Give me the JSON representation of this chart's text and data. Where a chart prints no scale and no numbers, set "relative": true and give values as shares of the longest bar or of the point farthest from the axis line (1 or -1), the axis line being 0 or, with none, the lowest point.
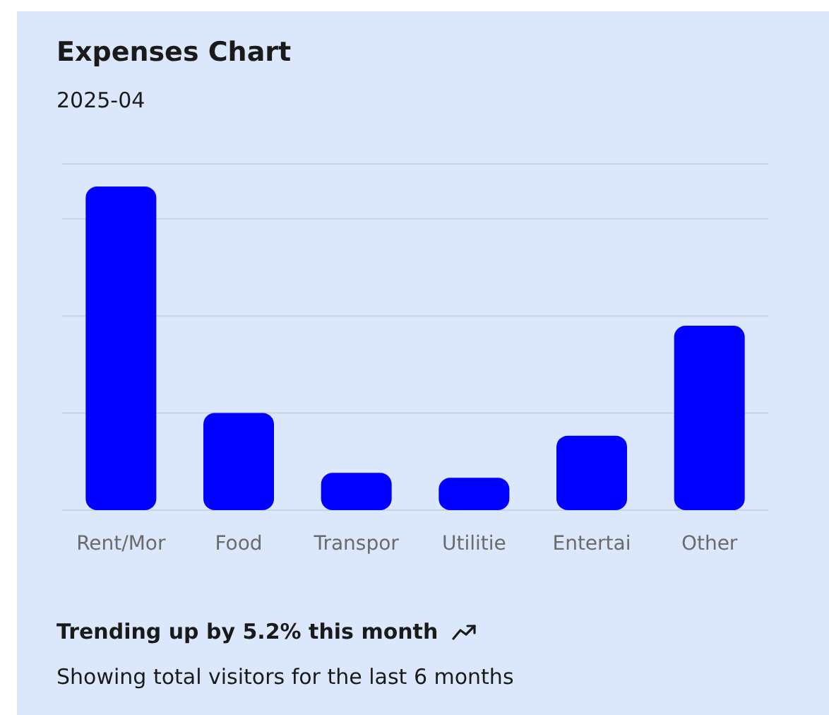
{
  "chart_data": {
    "type": "bar",
    "title": "Expenses Chart",
    "subtitle": "2025-04",
    "categories": [
      "Rent/Mor",
      "Food",
      "Transpor",
      "Utilitie",
      "Entertai",
      "Other"
    ],
    "values": [
      1,
      0.3,
      0.115,
      0.1,
      0.23,
      0.57
    ],
    "color": "#0000ff",
    "relative": true,
    "grid": "y",
    "annotations": [
      "Trending up by 5.2% this month",
      "Showing total visitors for the last 6 months"
    ]
  }
}
